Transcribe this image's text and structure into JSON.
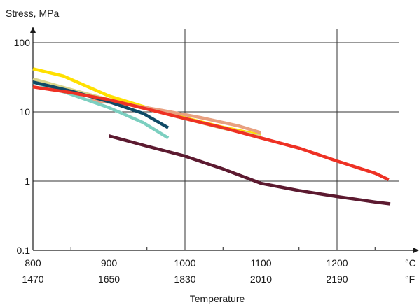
{
  "chart_data": {
    "type": "line",
    "ylabel": "Stress, MPa",
    "xlabel": "Temperature",
    "y_scale": "log",
    "ylim": [
      0.1,
      100
    ],
    "xlim": [
      800,
      1275
    ],
    "grid": true,
    "y_ticks": [
      {
        "value": 0.1,
        "label": "0.1"
      },
      {
        "value": 1,
        "label": "1"
      },
      {
        "value": 10,
        "label": "10"
      },
      {
        "value": 100,
        "label": "100"
      }
    ],
    "x_ticks_c": [
      {
        "value": 800,
        "label": "800"
      },
      {
        "value": 900,
        "label": "900"
      },
      {
        "value": 1000,
        "label": "1000"
      },
      {
        "value": 1100,
        "label": "1100"
      },
      {
        "value": 1200,
        "label": "1200"
      }
    ],
    "x_ticks_f": [
      "1470",
      "1650",
      "1830",
      "2010",
      "2190"
    ],
    "unit_c": "°C",
    "unit_f": "°F",
    "series": [
      {
        "color": "#FFE000",
        "points": [
          [
            800,
            42
          ],
          [
            840,
            33
          ],
          [
            900,
            17
          ],
          [
            950,
            11.5
          ],
          [
            1000,
            8.2
          ],
          [
            1050,
            6
          ],
          [
            1100,
            4.6
          ]
        ]
      },
      {
        "color": "#D8D48A",
        "points": [
          [
            800,
            30
          ],
          [
            850,
            21
          ],
          [
            900,
            15
          ],
          [
            950,
            11
          ],
          [
            1000,
            8
          ],
          [
            1050,
            5.8
          ],
          [
            1100,
            4.4
          ]
        ]
      },
      {
        "color": "#E8A080",
        "points": [
          [
            870,
            15
          ],
          [
            920,
            13
          ],
          [
            970,
            10.5
          ],
          [
            1020,
            8.3
          ],
          [
            1070,
            6.3
          ],
          [
            1100,
            5
          ]
        ]
      },
      {
        "color": "#7CCFC0",
        "points": [
          [
            800,
            27
          ],
          [
            850,
            18
          ],
          [
            900,
            11.5
          ],
          [
            945,
            7
          ],
          [
            978,
            4.2
          ]
        ]
      },
      {
        "color": "#0F4A66",
        "points": [
          [
            800,
            27
          ],
          [
            850,
            20
          ],
          [
            900,
            14
          ],
          [
            945,
            9.5
          ],
          [
            978,
            5.9
          ]
        ]
      },
      {
        "color": "#EE3124",
        "points": [
          [
            800,
            23
          ],
          [
            850,
            19
          ],
          [
            900,
            15
          ],
          [
            950,
            11
          ],
          [
            1000,
            8
          ],
          [
            1050,
            5.9
          ],
          [
            1100,
            4.2
          ],
          [
            1150,
            3
          ],
          [
            1200,
            1.95
          ],
          [
            1250,
            1.3
          ],
          [
            1268,
            1.05
          ]
        ]
      },
      {
        "color": "#5C1A30",
        "points": [
          [
            900,
            4.5
          ],
          [
            950,
            3.2
          ],
          [
            1000,
            2.3
          ],
          [
            1050,
            1.5
          ],
          [
            1100,
            0.93
          ],
          [
            1150,
            0.73
          ],
          [
            1200,
            0.6
          ],
          [
            1250,
            0.5
          ],
          [
            1270,
            0.47
          ]
        ]
      }
    ]
  }
}
